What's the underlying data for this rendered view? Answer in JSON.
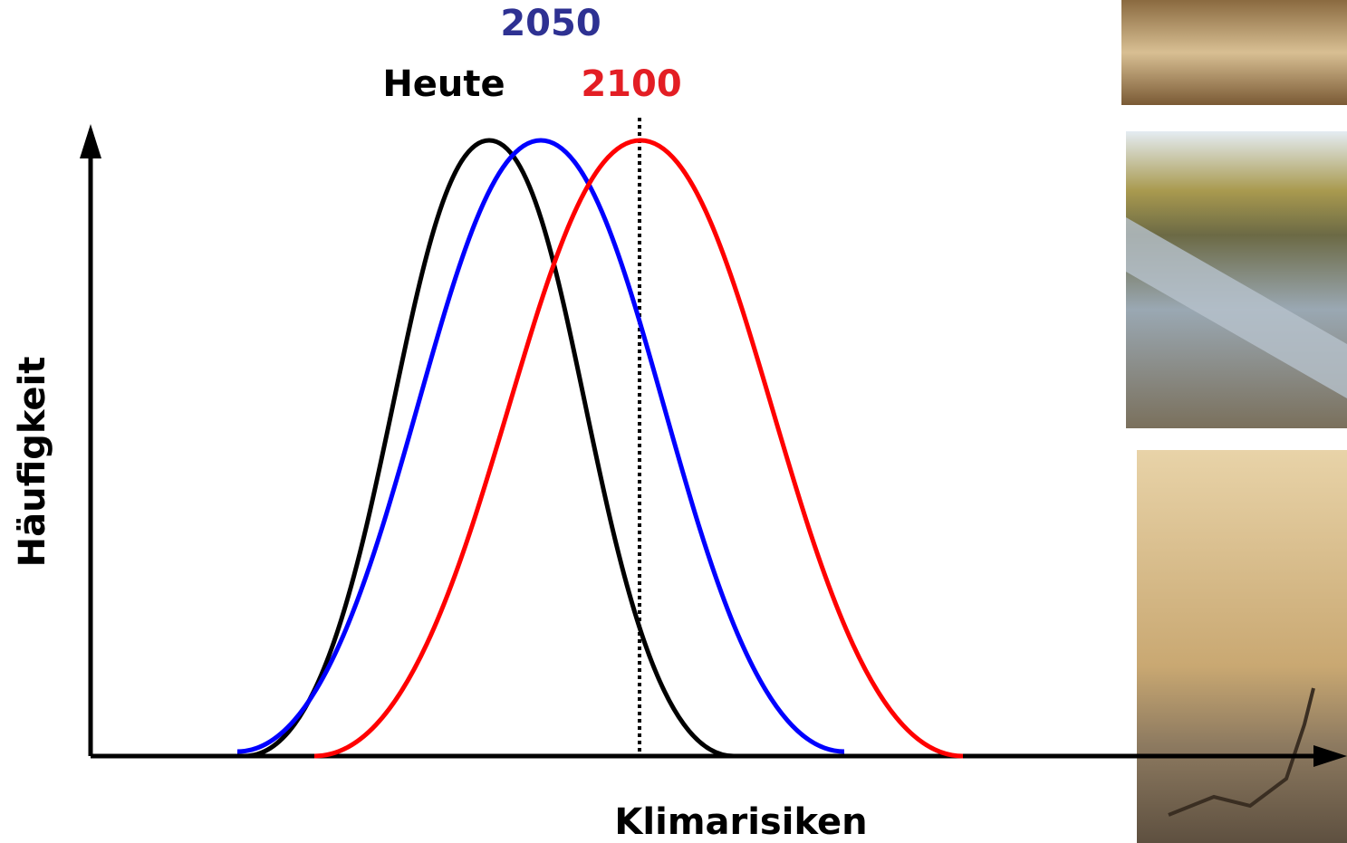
{
  "labels": {
    "year_2050": "2050",
    "today": "Heute",
    "year_2100": "2100"
  },
  "axes": {
    "y": "Häufigkeit",
    "x": "Klimarisiken"
  }
}
